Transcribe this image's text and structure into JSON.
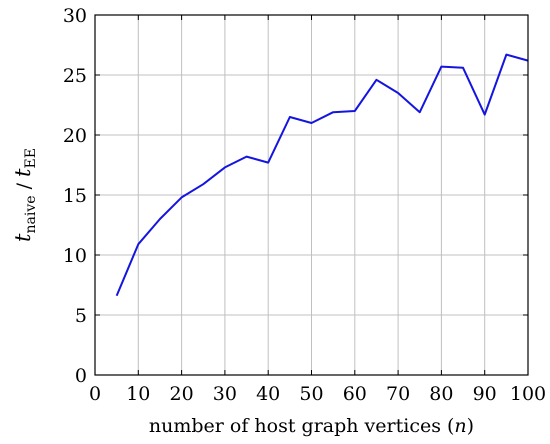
{
  "chart_data": {
    "type": "line",
    "title": "",
    "xlabel": "number of host graph vertices (n)",
    "ylabel": {
      "numerator_var": "t",
      "numerator_sub": "naive",
      "separator": " / ",
      "denominator_var": "t",
      "denominator_sub": "EE"
    },
    "xlim": [
      0,
      100
    ],
    "ylim": [
      0,
      30
    ],
    "xticks": [
      0,
      10,
      20,
      30,
      40,
      50,
      60,
      70,
      80,
      90,
      100
    ],
    "yticks": [
      0,
      5,
      10,
      15,
      20,
      25,
      30
    ],
    "grid": true,
    "series": [
      {
        "color": "#1515e0",
        "x": [
          5,
          10,
          15,
          20,
          25,
          30,
          35,
          40,
          45,
          50,
          55,
          60,
          65,
          70,
          75,
          80,
          85,
          90,
          95,
          100
        ],
        "y": [
          6.6,
          10.9,
          13.0,
          14.8,
          15.9,
          17.3,
          18.2,
          17.7,
          21.5,
          21.0,
          21.9,
          22.0,
          24.6,
          23.5,
          21.9,
          25.7,
          25.6,
          21.7,
          26.7,
          26.2
        ]
      }
    ]
  }
}
